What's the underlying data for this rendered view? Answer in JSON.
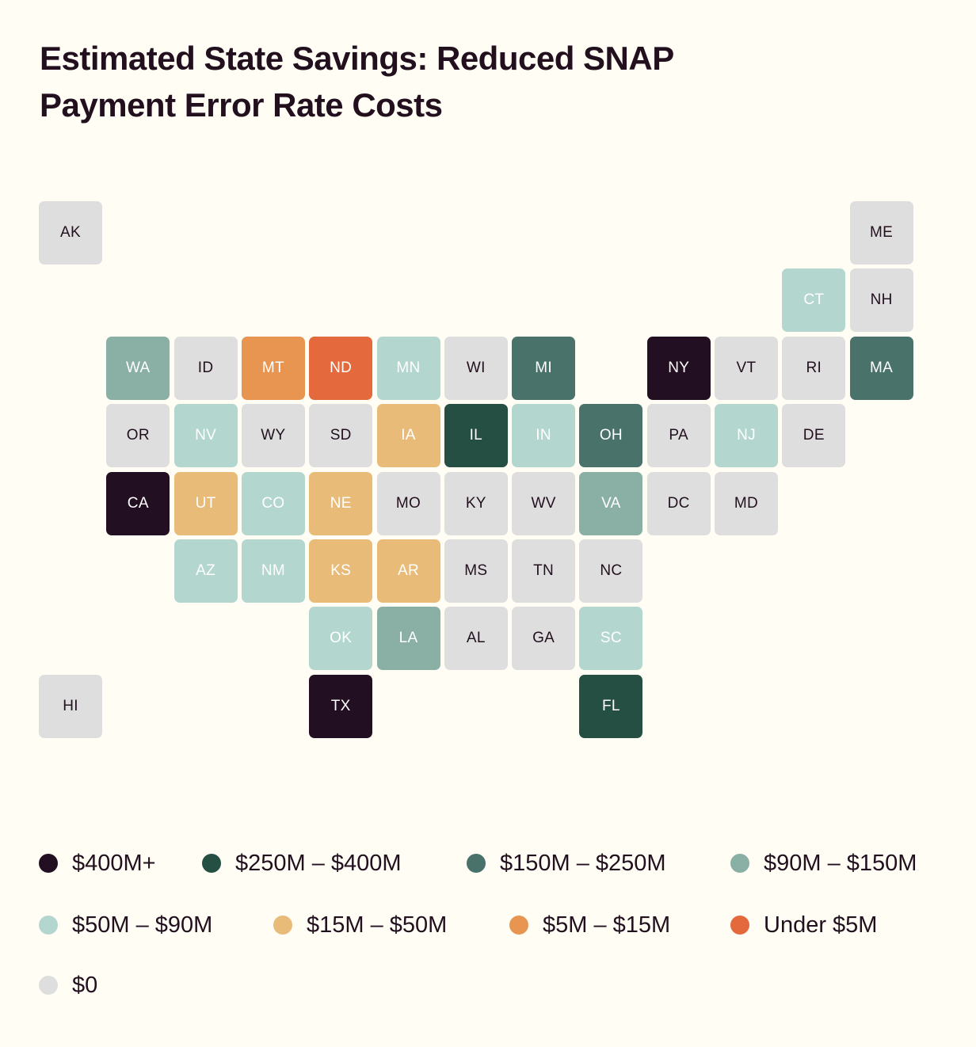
{
  "title": "Estimated State Savings: Reduced SNAP Payment Error Rate Costs",
  "legend": [
    {
      "label": "$400M+",
      "color": "#230f22",
      "text_color": "#ffffff"
    },
    {
      "label": "$250M – $400M",
      "color": "#264f44",
      "text_color": "#ffffff"
    },
    {
      "label": "$150M – $250M",
      "color": "#48726a",
      "text_color": "#ffffff"
    },
    {
      "label": "$90M – $150M",
      "color": "#8aafa5",
      "text_color": "#ffffff"
    },
    {
      "label": "$50M – $90M",
      "color": "#b3d7ce",
      "text_color": "#ffffff"
    },
    {
      "label": "$15M – $50M",
      "color": "#e9bb79",
      "text_color": "#ffffff"
    },
    {
      "label": "$5M – $15M",
      "color": "#e79550",
      "text_color": "#ffffff"
    },
    {
      "label": "Under $5M",
      "color": "#e46a3d",
      "text_color": "#ffffff"
    },
    {
      "label": "$0",
      "color": "#dedede",
      "text_color": "#22101f"
    }
  ],
  "states": [
    {
      "abbr": "AK",
      "bin": 8
    },
    {
      "abbr": "ME",
      "bin": 8
    },
    {
      "abbr": "CT",
      "bin": 4
    },
    {
      "abbr": "NH",
      "bin": 8
    },
    {
      "abbr": "WA",
      "bin": 3
    },
    {
      "abbr": "ID",
      "bin": 8
    },
    {
      "abbr": "MT",
      "bin": 6
    },
    {
      "abbr": "ND",
      "bin": 7
    },
    {
      "abbr": "MN",
      "bin": 4
    },
    {
      "abbr": "WI",
      "bin": 8
    },
    {
      "abbr": "MI",
      "bin": 2
    },
    {
      "abbr": "NY",
      "bin": 0
    },
    {
      "abbr": "VT",
      "bin": 8
    },
    {
      "abbr": "RI",
      "bin": 8
    },
    {
      "abbr": "MA",
      "bin": 2
    },
    {
      "abbr": "OR",
      "bin": 8
    },
    {
      "abbr": "NV",
      "bin": 4
    },
    {
      "abbr": "WY",
      "bin": 8
    },
    {
      "abbr": "SD",
      "bin": 8
    },
    {
      "abbr": "IA",
      "bin": 5
    },
    {
      "abbr": "IL",
      "bin": 1
    },
    {
      "abbr": "IN",
      "bin": 4
    },
    {
      "abbr": "OH",
      "bin": 2
    },
    {
      "abbr": "PA",
      "bin": 8
    },
    {
      "abbr": "NJ",
      "bin": 4
    },
    {
      "abbr": "DE",
      "bin": 8
    },
    {
      "abbr": "CA",
      "bin": 0
    },
    {
      "abbr": "UT",
      "bin": 5
    },
    {
      "abbr": "CO",
      "bin": 4
    },
    {
      "abbr": "NE",
      "bin": 5
    },
    {
      "abbr": "MO",
      "bin": 8
    },
    {
      "abbr": "KY",
      "bin": 8
    },
    {
      "abbr": "WV",
      "bin": 8
    },
    {
      "abbr": "VA",
      "bin": 3
    },
    {
      "abbr": "DC",
      "bin": 8
    },
    {
      "abbr": "MD",
      "bin": 8
    },
    {
      "abbr": "AZ",
      "bin": 4
    },
    {
      "abbr": "NM",
      "bin": 4
    },
    {
      "abbr": "KS",
      "bin": 5
    },
    {
      "abbr": "AR",
      "bin": 5
    },
    {
      "abbr": "MS",
      "bin": 8
    },
    {
      "abbr": "TN",
      "bin": 8
    },
    {
      "abbr": "NC",
      "bin": 8
    },
    {
      "abbr": "OK",
      "bin": 4
    },
    {
      "abbr": "LA",
      "bin": 3
    },
    {
      "abbr": "AL",
      "bin": 8
    },
    {
      "abbr": "GA",
      "bin": 8
    },
    {
      "abbr": "SC",
      "bin": 4
    },
    {
      "abbr": "HI",
      "bin": 8
    },
    {
      "abbr": "TX",
      "bin": 0
    },
    {
      "abbr": "FL",
      "bin": 1
    }
  ]
}
